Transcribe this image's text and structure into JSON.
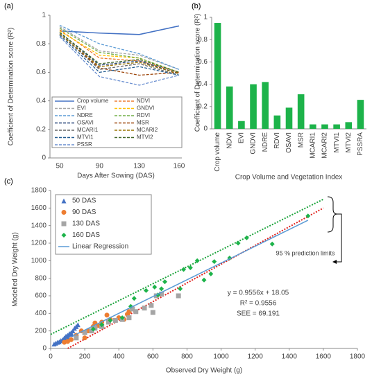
{
  "chart_data": [
    {
      "type": "line",
      "panel": "(a)",
      "xlabel": "Days After Sowing (DAS)",
      "ylabel": "Coefficient of Determination score (R²)",
      "categories": [
        "50",
        "90",
        "130",
        "160"
      ],
      "ylim": [
        0,
        1
      ],
      "yticks": [
        0,
        0.2,
        0.4,
        0.6,
        0.8,
        1
      ],
      "grid": false,
      "series": [
        {
          "name": "Crop volume",
          "color": "#4472c4",
          "style": "solid",
          "values": [
            0.89,
            0.875,
            0.865,
            0.925
          ]
        },
        {
          "name": "NDVI",
          "color": "#ed7d31",
          "style": "dashed",
          "values": [
            0.9,
            0.7,
            0.68,
            0.6
          ]
        },
        {
          "name": "EVI",
          "color": "#a5a5a5",
          "style": "dashed",
          "values": [
            0.92,
            0.75,
            0.72,
            0.62
          ]
        },
        {
          "name": "GNDVI",
          "color": "#ffc000",
          "style": "dashed",
          "values": [
            0.89,
            0.72,
            0.7,
            0.6
          ]
        },
        {
          "name": "NDRE",
          "color": "#5b9bd5",
          "style": "dashed",
          "values": [
            0.93,
            0.8,
            0.73,
            0.62
          ]
        },
        {
          "name": "RDVI",
          "color": "#70ad47",
          "style": "dashed",
          "values": [
            0.91,
            0.74,
            0.7,
            0.6
          ]
        },
        {
          "name": "OSAVI",
          "color": "#264478",
          "style": "dashed",
          "values": [
            0.88,
            0.65,
            0.68,
            0.59
          ]
        },
        {
          "name": "MSR",
          "color": "#9e480e",
          "style": "dashed",
          "values": [
            0.87,
            0.63,
            0.58,
            0.6
          ]
        },
        {
          "name": "MCARI1",
          "color": "#636363",
          "style": "dashed",
          "values": [
            0.87,
            0.62,
            0.66,
            0.58
          ]
        },
        {
          "name": "MCARI2",
          "color": "#997300",
          "style": "dashed",
          "values": [
            0.87,
            0.64,
            0.67,
            0.59
          ]
        },
        {
          "name": "MTVI1",
          "color": "#255e91",
          "style": "dashed",
          "values": [
            0.86,
            0.6,
            0.64,
            0.58
          ]
        },
        {
          "name": "MTVI2",
          "color": "#43682b",
          "style": "dashed",
          "values": [
            0.88,
            0.66,
            0.69,
            0.6
          ]
        },
        {
          "name": "PSSR",
          "color": "#698ed0",
          "style": "dashed",
          "values": [
            0.85,
            0.57,
            0.51,
            0.58
          ]
        }
      ]
    },
    {
      "type": "bar",
      "panel": "(b)",
      "xlabel": "Crop Volume and Vegetation Index",
      "ylabel": "Coefficient of Determination score (R²)",
      "categories": [
        "Crop volume",
        "NDVI",
        "EVI",
        "GNDVI",
        "NDRE",
        "RDVI",
        "OSAVI",
        "MSR",
        "MCARI1",
        "MCARI2",
        "MTVI1",
        "MTVI2",
        "PSSRA"
      ],
      "values": [
        0.95,
        0.38,
        0.07,
        0.4,
        0.42,
        0.12,
        0.19,
        0.31,
        0.04,
        0.04,
        0.04,
        0.06,
        0.26
      ],
      "color": "#1db34a",
      "ylim": [
        0,
        1
      ],
      "yticks": [
        0,
        0.2,
        0.4,
        0.6,
        0.8,
        1
      ],
      "grid": false
    },
    {
      "type": "scatter",
      "panel": "(c)",
      "xlabel": "Observed Dry Weight (g)",
      "ylabel": "Modelled Dry Weight (g)",
      "xlim": [
        0,
        1800
      ],
      "xticks": [
        0,
        200,
        400,
        600,
        800,
        1000,
        1200,
        1400,
        1600,
        1800
      ],
      "ylim": [
        0,
        1800
      ],
      "yticks": [
        0,
        200,
        400,
        600,
        800,
        1000,
        1200,
        1400,
        1600,
        1800
      ],
      "grid": false,
      "legend": "upper left",
      "series": [
        {
          "name": "50 DAS",
          "color": "#4472c4",
          "marker": "triangle",
          "x": [
            20,
            30,
            40,
            50,
            60,
            70,
            80,
            90,
            100,
            110,
            120,
            130,
            140,
            150,
            160,
            100,
            120
          ],
          "y": [
            50,
            60,
            70,
            75,
            90,
            100,
            120,
            140,
            150,
            170,
            180,
            200,
            230,
            250,
            270,
            120,
            160
          ]
        },
        {
          "name": "90 DAS",
          "color": "#ed7d31",
          "marker": "circle",
          "x": [
            80,
            100,
            120,
            150,
            180,
            200,
            220,
            250,
            260,
            280,
            300,
            330,
            350,
            400,
            430,
            450,
            460
          ],
          "y": [
            70,
            80,
            100,
            150,
            200,
            120,
            200,
            250,
            290,
            260,
            300,
            380,
            330,
            350,
            330,
            390,
            420
          ]
        },
        {
          "name": "130 DAS",
          "color": "#a5a5a5",
          "marker": "square",
          "x": [
            150,
            200,
            240,
            260,
            300,
            340,
            380,
            420,
            460,
            480,
            500,
            550,
            590,
            600,
            620,
            650,
            750
          ],
          "y": [
            120,
            180,
            200,
            230,
            250,
            300,
            320,
            330,
            350,
            450,
            420,
            460,
            490,
            410,
            600,
            620,
            600
          ]
        },
        {
          "name": "160 DAS",
          "color": "#1db34a",
          "marker": "diamond",
          "x": [
            250,
            300,
            350,
            420,
            470,
            490,
            560,
            610,
            630,
            650,
            670,
            760,
            780,
            820,
            860,
            900,
            940,
            960,
            1050,
            1100,
            1150,
            1300,
            1510
          ],
          "y": [
            220,
            270,
            320,
            350,
            480,
            570,
            660,
            700,
            610,
            680,
            760,
            680,
            900,
            920,
            1000,
            780,
            850,
            990,
            1030,
            1200,
            1260,
            1190,
            1510
          ]
        },
        {
          "name": "Linear Regression",
          "color": "#5b9bd5",
          "marker": "line",
          "x": [
            130,
            1510
          ],
          "y": [
            142,
            1461
          ]
        }
      ],
      "prediction_limits": {
        "label": "95 % prediction limits",
        "lines": [
          {
            "color": "#1aa33a",
            "x": [
              0,
              1600
            ],
            "y": [
              160,
              1700
            ]
          },
          {
            "color": "#e0201b",
            "x": [
              100,
              1600
            ],
            "y": [
              0,
              1600
            ]
          }
        ]
      },
      "annotations": [
        "y = 0.9556x + 18.05",
        "R² = 0.9556",
        "SEE = 69.191"
      ]
    }
  ]
}
